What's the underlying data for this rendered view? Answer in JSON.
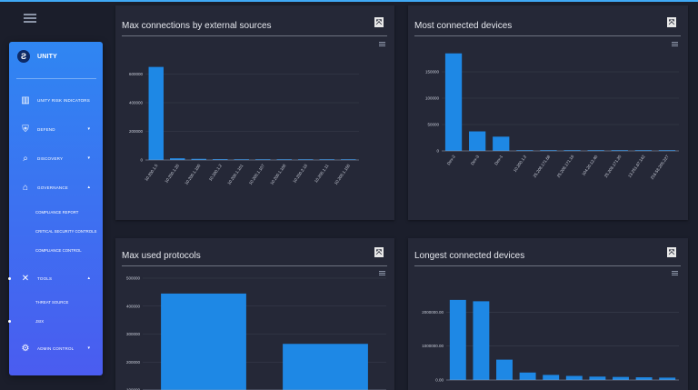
{
  "sidebar": {
    "brand": "UNITY",
    "items": [
      {
        "label": "UNITY RISK INDICATORS",
        "icon": "bar-chart-icon",
        "chevron": false
      },
      {
        "label": "DEFEND",
        "icon": "shield-gear-icon",
        "chevron": true
      },
      {
        "label": "DISCOVERY",
        "icon": "magnify-icon",
        "chevron": true
      },
      {
        "label": "GOVERNANCE",
        "icon": "institution-icon",
        "chevron": true
      },
      {
        "label": "TOOLS",
        "icon": "tools-icon",
        "chevron": true
      },
      {
        "label": "ADMIN CONTROL",
        "icon": "settings-icon",
        "chevron": true
      }
    ],
    "governance_sub": [
      "COMPLIANCE REPORT",
      "CRITICAL SECURITY CONTROLS",
      "COMPLIANCE CONTROL"
    ],
    "tools_sub": [
      "THREAT SOURCE",
      "JSIX"
    ]
  },
  "panels": {
    "p1": {
      "title": "Max connections by external sources"
    },
    "p2": {
      "title": "Most connected devices"
    },
    "p3": {
      "title": "Max used protocols"
    },
    "p4": {
      "title": "Longest connected devices"
    },
    "close_glyph": "⤧"
  },
  "chart_data": [
    {
      "type": "bar",
      "title": "Max connections by external sources",
      "categories": [
        "10.200.1.5",
        "10.200.1.20",
        "10.200.1.100",
        "10.200.1.2",
        "10.200.1.101",
        "10.200.1.107",
        "10.200.1.108",
        "10.200.2.18",
        "10.200.1.11",
        "10.200.1.150"
      ],
      "values": [
        650000,
        12000,
        8000,
        6000,
        3000,
        1500,
        1000,
        800,
        600,
        400
      ],
      "yticks": [
        "0",
        "200000",
        "400000",
        "600000"
      ],
      "ylim": [
        0,
        800000
      ]
    },
    {
      "type": "bar",
      "title": "Most connected devices",
      "categories": [
        "Dev-2",
        "Dev-3",
        "Dev-1",
        "10.200.1.2",
        "25.208.171.68",
        "25.208.171.16",
        "104.20.12.40",
        "25.208.171.20",
        "13.251.67.142",
        "216.58.205.227"
      ],
      "values": [
        185000,
        37000,
        27000,
        800,
        600,
        500,
        400,
        300,
        300,
        200
      ],
      "yticks": [
        "0",
        "50000",
        "100000",
        "150000"
      ],
      "ylim": [
        0,
        200000
      ]
    },
    {
      "type": "bar",
      "title": "Max used protocols",
      "categories": [
        "",
        ""
      ],
      "values": [
        445000,
        265000
      ],
      "yticks": [
        "100000",
        "200000",
        "300000",
        "400000",
        "500000"
      ],
      "ylim": [
        100000,
        500000
      ]
    },
    {
      "type": "bar",
      "title": "Longest connected devices",
      "categories": [
        "",
        "",
        "",
        "",
        "",
        "",
        "",
        "",
        "",
        ""
      ],
      "values": [
        2360000,
        2320000,
        600000,
        220000,
        150000,
        120000,
        100000,
        90000,
        80000,
        70000
      ],
      "yticks": [
        "0.00",
        "1000000.00",
        "2000000.00"
      ],
      "ylim": [
        0,
        3000000
      ]
    }
  ]
}
